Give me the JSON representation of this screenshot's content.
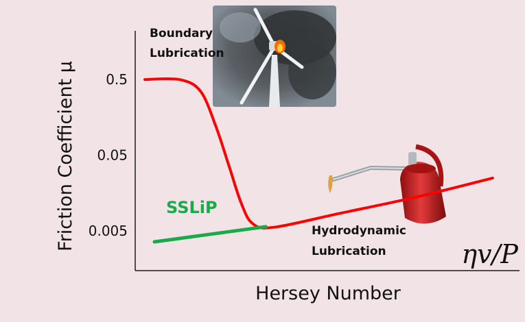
{
  "chart_data": {
    "type": "line",
    "xlabel": "Hersey Number",
    "ylabel": "Friction Coefficient μ",
    "y_scale": "log",
    "y_ticks": [
      {
        "value": 0.5,
        "label": "0.5"
      },
      {
        "value": 0.05,
        "label": "0.05"
      },
      {
        "value": 0.005,
        "label": "0.005"
      }
    ],
    "ylim": [
      0.0015,
      2.2
    ],
    "xlim": [
      0,
      1
    ],
    "x_axis_formula": "ηv/P",
    "series": [
      {
        "color": "#ff0000",
        "points": [
          [
            0.025,
            0.5
          ],
          [
            0.115,
            0.5
          ],
          [
            0.17,
            0.35
          ],
          [
            0.21,
            0.12
          ],
          [
            0.245,
            0.035
          ],
          [
            0.275,
            0.012
          ],
          [
            0.305,
            0.0063
          ],
          [
            0.36,
            0.0056
          ],
          [
            0.53,
            0.0085
          ],
          [
            0.73,
            0.014
          ],
          [
            0.93,
            0.025
          ]
        ]
      },
      {
        "name": "SSLiP",
        "color": "#1aaa4a",
        "points": [
          [
            0.05,
            0.0036
          ],
          [
            0.34,
            0.0057
          ]
        ]
      }
    ],
    "annotations": [
      {
        "id": "boundary",
        "lines": [
          "Boundary",
          "Lubrication"
        ]
      },
      {
        "id": "hydrodynamic",
        "lines": [
          "Hydrodynamic",
          "Lubrication"
        ]
      }
    ],
    "images": [
      {
        "icon": "burning-wind-turbine-icon"
      },
      {
        "icon": "oil-can-icon"
      }
    ],
    "grid": false,
    "legend": "none"
  }
}
